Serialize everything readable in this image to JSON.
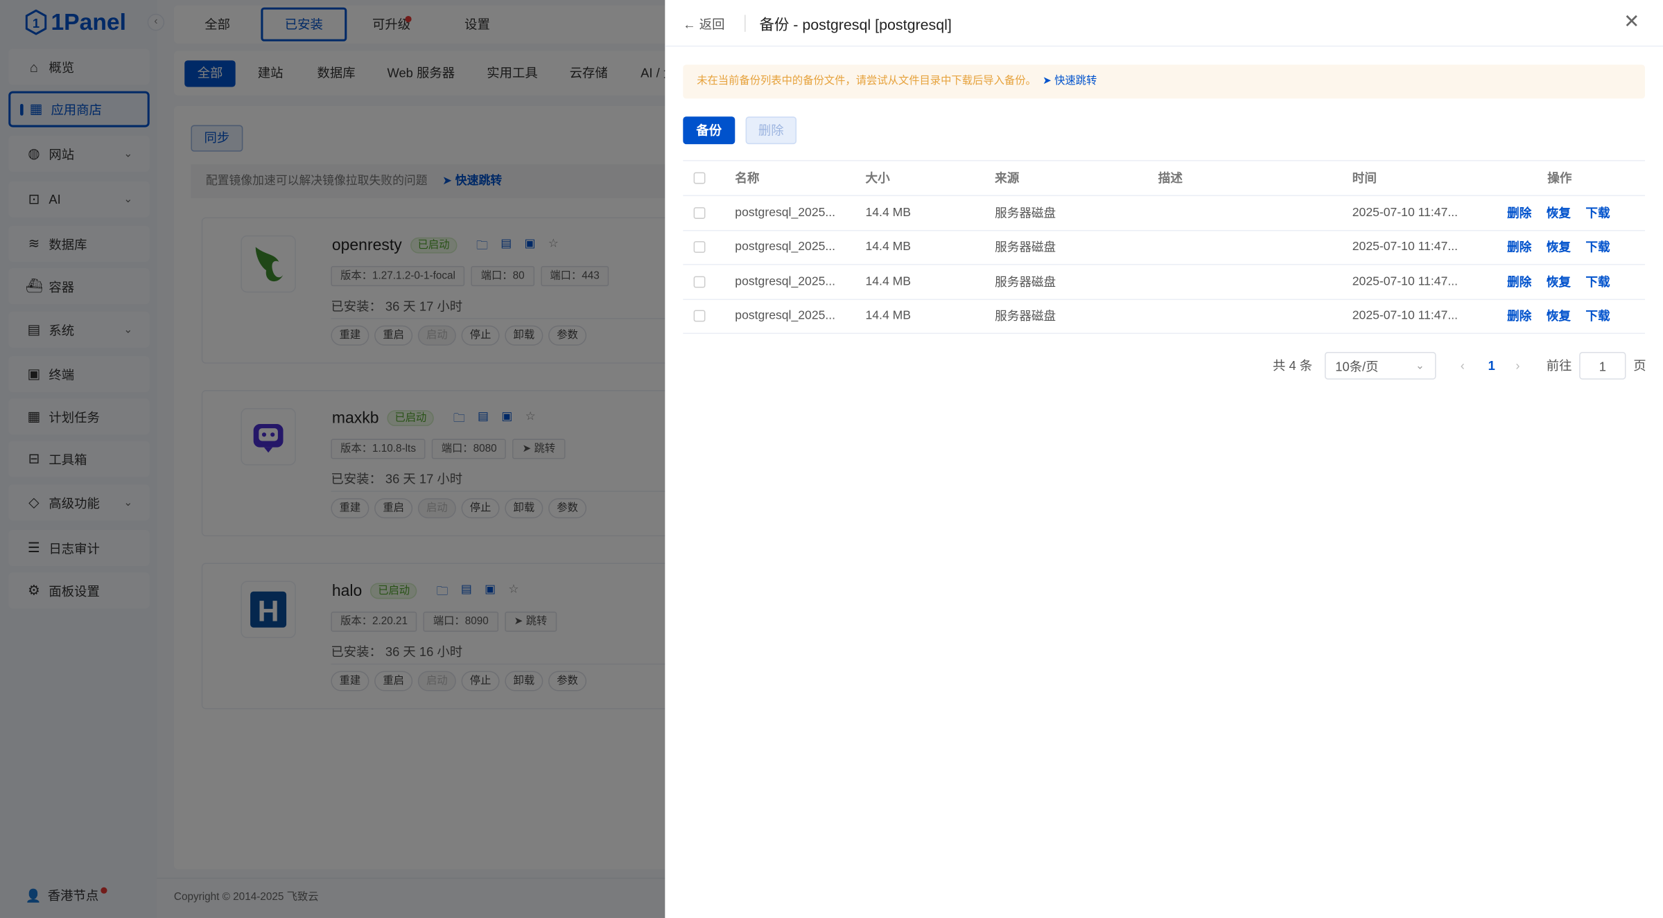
{
  "sidebar": {
    "logo": "1Panel",
    "items": [
      {
        "label": "概览",
        "icon": "home-icon"
      },
      {
        "label": "应用商店",
        "icon": "grid-icon",
        "active": true
      },
      {
        "label": "网站",
        "icon": "globe-icon",
        "expandable": true
      },
      {
        "label": "AI",
        "icon": "robot-icon",
        "expandable": true
      },
      {
        "label": "数据库",
        "icon": "layers-icon"
      },
      {
        "label": "容器",
        "icon": "docker-icon"
      },
      {
        "label": "系统",
        "icon": "server-icon",
        "expandable": true
      },
      {
        "label": "终端",
        "icon": "terminal-icon"
      },
      {
        "label": "计划任务",
        "icon": "calendar-icon"
      },
      {
        "label": "工具箱",
        "icon": "toolbox-icon"
      },
      {
        "label": "高级功能",
        "icon": "diamond-icon",
        "expandable": true
      },
      {
        "label": "日志审计",
        "icon": "log-icon"
      },
      {
        "label": "面板设置",
        "icon": "gear-icon"
      }
    ],
    "node": "香港节点"
  },
  "tabs": [
    {
      "label": "全部"
    },
    {
      "label": "已安装",
      "active": true
    },
    {
      "label": "可升级",
      "dot": true
    },
    {
      "label": "设置"
    }
  ],
  "categories": [
    "全部",
    "建站",
    "数据库",
    "Web 服务器",
    "实用工具",
    "云存储",
    "AI / 大模型"
  ],
  "sync_label": "同步",
  "tip": {
    "text": "配置镜像加速可以解决镜像拉取失败的问题",
    "link": "快速跳转"
  },
  "apps": [
    {
      "name": "openresty",
      "status": "已启动",
      "version": "版本：1.27.1.2-0-1-focal",
      "ports": [
        "端口：80",
        "端口：443"
      ],
      "installed": "已安装：  36 天 17 小时"
    },
    {
      "name": "maxkb",
      "status": "已启动",
      "version": "版本：1.10.8-lts",
      "ports": [
        "端口：8080"
      ],
      "jump": "跳转",
      "installed": "已安装：  36 天 17 小时"
    },
    {
      "name": "halo",
      "status": "已启动",
      "version": "版本：2.20.21",
      "ports": [
        "端口：8090"
      ],
      "jump": "跳转",
      "installed": "已安装：  36 天 16 小时"
    }
  ],
  "app_actions": [
    "重建",
    "重启",
    "启动",
    "停止",
    "卸载",
    "参数"
  ],
  "footer": "Copyright © 2014-2025 飞致云",
  "drawer": {
    "back": "返回",
    "title": "备份 - postgresql [postgresql]",
    "alert": "未在当前备份列表中的备份文件，请尝试从文件目录中下载后导入备份。",
    "alert_link": "快速跳转",
    "backup_btn": "备份",
    "delete_btn": "删除",
    "columns": [
      "名称",
      "大小",
      "来源",
      "描述",
      "时间",
      "操作"
    ],
    "rows": [
      {
        "name": "postgresql_2025...",
        "size": "14.4 MB",
        "source": "服务器磁盘",
        "desc": "",
        "time": "2025-07-10 11:47..."
      },
      {
        "name": "postgresql_2025...",
        "size": "14.4 MB",
        "source": "服务器磁盘",
        "desc": "",
        "time": "2025-07-10 11:47..."
      },
      {
        "name": "postgresql_2025...",
        "size": "14.4 MB",
        "source": "服务器磁盘",
        "desc": "",
        "time": "2025-07-10 11:47..."
      },
      {
        "name": "postgresql_2025...",
        "size": "14.4 MB",
        "source": "服务器磁盘",
        "desc": "",
        "time": "2025-07-10 11:47..."
      }
    ],
    "row_actions": [
      "删除",
      "恢复",
      "下载"
    ],
    "pagination": {
      "total": "共 4 条",
      "page_size": "10条/页",
      "current": "1",
      "goto_label": "前往",
      "goto_value": "1",
      "page_suffix": "页"
    }
  }
}
